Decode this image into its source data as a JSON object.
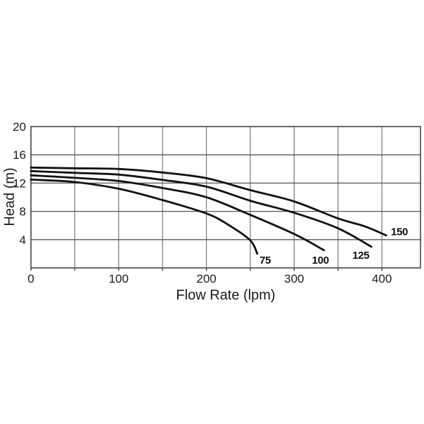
{
  "chart_data": {
    "type": "line",
    "title": "",
    "xlabel": "Flow Rate (lpm)",
    "ylabel": "Head (m)",
    "xlim": [
      0,
      444
    ],
    "ylim": [
      0,
      20
    ],
    "xticks": [
      0,
      100,
      200,
      300,
      400
    ],
    "yticks": [
      4,
      8,
      12,
      16,
      20
    ],
    "x_minor_step": 50,
    "grid": true,
    "legend_position": "inline-end-of-curve",
    "colors": {
      "background": "#ffffff",
      "curve": "#111111",
      "grid_h": "#555555",
      "grid_v": "#777777",
      "border": "#444444",
      "text": "#1a1a1a"
    },
    "series": [
      {
        "name": "75",
        "label": "75",
        "points": [
          [
            0,
            12.5
          ],
          [
            50,
            12.15
          ],
          [
            100,
            11.2
          ],
          [
            150,
            9.6
          ],
          [
            200,
            7.7
          ],
          [
            225,
            6.1
          ],
          [
            250,
            3.9
          ],
          [
            258,
            2.0
          ]
        ],
        "label_at": [
          267,
          1.1
        ]
      },
      {
        "name": "100",
        "label": "100",
        "points": [
          [
            0,
            13.1
          ],
          [
            50,
            12.75
          ],
          [
            100,
            12.3
          ],
          [
            150,
            11.3
          ],
          [
            200,
            10.0
          ],
          [
            250,
            7.5
          ],
          [
            300,
            4.8
          ],
          [
            334,
            2.5
          ]
        ],
        "label_at": [
          330,
          1.1
        ]
      },
      {
        "name": "125",
        "label": "125",
        "points": [
          [
            0,
            13.7
          ],
          [
            50,
            13.45
          ],
          [
            100,
            13.2
          ],
          [
            150,
            12.45
          ],
          [
            200,
            11.5
          ],
          [
            250,
            9.5
          ],
          [
            300,
            7.8
          ],
          [
            350,
            5.6
          ],
          [
            388,
            3.0
          ]
        ],
        "label_at": [
          376,
          1.8
        ]
      },
      {
        "name": "150",
        "label": "150",
        "points": [
          [
            0,
            14.2
          ],
          [
            50,
            14.1
          ],
          [
            100,
            14.0
          ],
          [
            150,
            13.5
          ],
          [
            200,
            12.7
          ],
          [
            250,
            11.0
          ],
          [
            300,
            9.4
          ],
          [
            350,
            7.0
          ],
          [
            380,
            5.9
          ],
          [
            405,
            4.6
          ]
        ],
        "label_at": [
          420,
          5.1
        ]
      }
    ]
  }
}
